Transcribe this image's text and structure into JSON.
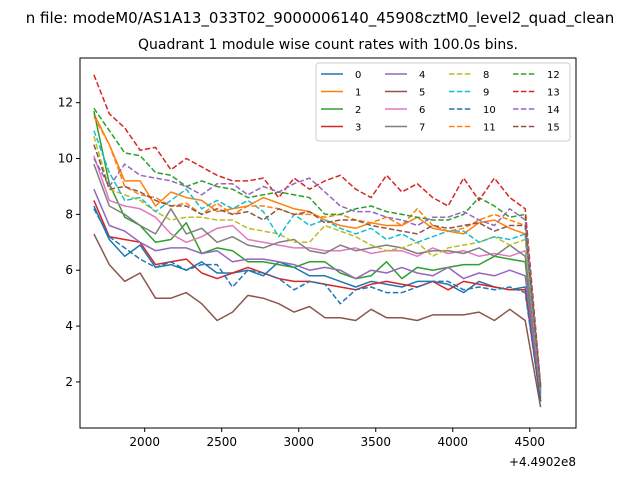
{
  "chart_data": {
    "type": "line",
    "suptitle": "n file: modeM0/AS1A13_033T02_9000006140_45908cztM0_level2_quad_clean",
    "title": "Quadrant 1 module wise count rates with 100.0s bins.",
    "xlabel": "",
    "ylabel": "",
    "offset_text": "+4.4902e8",
    "xlim": [
      1580,
      4800
    ],
    "ylim": [
      0.35,
      13.6
    ],
    "xticks": [
      2000,
      2500,
      3000,
      3500,
      4000,
      4500
    ],
    "yticks": [
      2,
      4,
      6,
      8,
      10,
      12
    ],
    "grid": false,
    "legend_position": "top-right",
    "legend_columns": 4,
    "x": [
      1670,
      1770,
      1870,
      1970,
      2070,
      2170,
      2270,
      2370,
      2470,
      2570,
      2670,
      2770,
      2870,
      2970,
      3070,
      3170,
      3270,
      3370,
      3470,
      3570,
      3670,
      3770,
      3870,
      3970,
      4070,
      4170,
      4270,
      4370,
      4470,
      4570
    ],
    "series": [
      {
        "name": "0",
        "color": "#1f77b4",
        "dash": "solid",
        "values": [
          8.3,
          7.1,
          6.5,
          6.9,
          6.1,
          6.2,
          6.0,
          6.3,
          5.9,
          5.9,
          6.0,
          5.8,
          6.3,
          6.1,
          5.8,
          5.8,
          5.6,
          5.4,
          5.6,
          5.5,
          5.4,
          5.6,
          5.6,
          5.5,
          5.2,
          5.6,
          5.4,
          5.3,
          5.4,
          1.3
        ]
      },
      {
        "name": "1",
        "color": "#ff7f0e",
        "dash": "solid",
        "values": [
          11.6,
          10.5,
          9.2,
          9.2,
          8.3,
          8.8,
          8.6,
          8.5,
          8.1,
          8.2,
          8.3,
          8.6,
          8.4,
          8.2,
          8.1,
          7.8,
          7.6,
          7.5,
          7.7,
          7.6,
          7.6,
          7.9,
          7.5,
          7.4,
          7.3,
          7.7,
          7.8,
          7.5,
          7.3,
          1.7
        ]
      },
      {
        "name": "2",
        "color": "#2ca02c",
        "dash": "solid",
        "values": [
          11.7,
          9.1,
          7.9,
          7.6,
          7.0,
          7.1,
          7.7,
          6.6,
          6.8,
          6.7,
          6.3,
          6.3,
          6.2,
          6.1,
          6.3,
          6.3,
          5.9,
          5.7,
          5.8,
          6.3,
          5.7,
          6.1,
          6.0,
          6.1,
          6.2,
          6.2,
          6.5,
          6.4,
          6.3,
          1.4
        ]
      },
      {
        "name": "3",
        "color": "#d62728",
        "dash": "solid",
        "values": [
          8.5,
          7.2,
          7.1,
          7.0,
          6.2,
          6.3,
          6.4,
          5.9,
          5.7,
          5.9,
          6.1,
          5.9,
          5.7,
          5.6,
          5.6,
          5.5,
          5.4,
          5.3,
          5.5,
          5.6,
          5.5,
          5.4,
          5.6,
          5.3,
          5.6,
          5.5,
          5.4,
          5.3,
          5.3,
          1.3
        ]
      },
      {
        "name": "4",
        "color": "#9467bd",
        "dash": "solid",
        "values": [
          8.9,
          7.6,
          7.4,
          7.0,
          6.7,
          6.8,
          6.8,
          6.6,
          6.7,
          6.3,
          6.4,
          6.4,
          6.3,
          6.2,
          6.0,
          6.1,
          6.0,
          5.7,
          6.0,
          5.9,
          6.1,
          5.9,
          5.8,
          6.1,
          5.7,
          5.9,
          5.8,
          6.0,
          5.8,
          1.5
        ]
      },
      {
        "name": "5",
        "color": "#8c564b",
        "dash": "solid",
        "values": [
          7.3,
          6.2,
          5.6,
          5.9,
          5.0,
          5.0,
          5.2,
          4.8,
          4.2,
          4.5,
          5.1,
          5.0,
          4.8,
          4.5,
          4.7,
          4.3,
          4.3,
          4.2,
          4.6,
          4.3,
          4.3,
          4.2,
          4.4,
          4.4,
          4.4,
          4.5,
          4.2,
          4.6,
          4.2,
          1.1
        ]
      },
      {
        "name": "6",
        "color": "#e377c2",
        "dash": "solid",
        "values": [
          10.1,
          8.5,
          8.3,
          8.2,
          7.9,
          7.3,
          7.0,
          7.2,
          7.5,
          7.6,
          7.1,
          7.0,
          6.9,
          6.8,
          6.8,
          6.7,
          6.7,
          6.8,
          6.6,
          6.7,
          6.7,
          6.5,
          6.8,
          6.6,
          6.7,
          6.5,
          6.6,
          6.5,
          6.7,
          1.6
        ]
      },
      {
        "name": "7",
        "color": "#7f7f7f",
        "dash": "solid",
        "values": [
          9.8,
          8.3,
          8.0,
          7.6,
          7.3,
          8.2,
          7.3,
          7.5,
          7.0,
          7.2,
          6.9,
          6.8,
          7.0,
          7.1,
          6.7,
          6.6,
          6.9,
          6.7,
          6.8,
          6.9,
          6.8,
          6.6,
          6.7,
          6.7,
          6.6,
          6.8,
          6.5,
          6.9,
          6.5,
          1.6
        ]
      },
      {
        "name": "8",
        "color": "#bcbd22",
        "dash": "dash",
        "values": [
          10.8,
          8.9,
          8.7,
          8.5,
          8.1,
          7.8,
          7.9,
          7.9,
          7.8,
          7.8,
          7.5,
          7.4,
          7.3,
          7.0,
          7.0,
          7.6,
          7.4,
          7.2,
          6.9,
          6.7,
          6.8,
          7.0,
          6.5,
          6.8,
          6.9,
          7.0,
          7.2,
          6.9,
          7.1,
          1.7
        ]
      },
      {
        "name": "9",
        "color": "#17becf",
        "dash": "dash",
        "values": [
          11.0,
          9.5,
          8.5,
          8.6,
          8.1,
          8.5,
          8.9,
          8.2,
          8.5,
          8.2,
          8.5,
          8.1,
          7.2,
          8.0,
          7.6,
          7.8,
          7.5,
          7.3,
          7.5,
          7.1,
          7.3,
          7.0,
          7.2,
          7.4,
          7.4,
          7.0,
          7.2,
          7.1,
          7.3,
          1.7
        ]
      },
      {
        "name": "10",
        "color": "#1f77b4",
        "dash": "dash",
        "values": [
          8.2,
          7.2,
          6.8,
          6.4,
          6.1,
          6.3,
          6.0,
          6.2,
          6.2,
          5.4,
          6.0,
          5.9,
          5.7,
          5.3,
          5.6,
          5.5,
          4.8,
          5.3,
          5.4,
          5.2,
          5.2,
          5.4,
          5.6,
          5.6,
          5.3,
          5.4,
          5.3,
          5.4,
          5.2,
          1.3
        ]
      },
      {
        "name": "11",
        "color": "#ff7f0e",
        "dash": "dash",
        "values": [
          11.5,
          10.5,
          9.0,
          8.7,
          8.6,
          8.3,
          8.4,
          8.0,
          8.4,
          8.0,
          8.3,
          8.3,
          8.2,
          8.0,
          8.0,
          7.9,
          8.0,
          7.8,
          7.7,
          7.9,
          7.6,
          8.2,
          7.6,
          7.4,
          7.5,
          7.8,
          8.0,
          7.8,
          7.6,
          1.7
        ]
      },
      {
        "name": "12",
        "color": "#2ca02c",
        "dash": "dash",
        "values": [
          11.8,
          11.0,
          10.2,
          10.1,
          9.5,
          9.4,
          9.0,
          9.2,
          9.0,
          8.9,
          8.6,
          8.7,
          8.8,
          8.7,
          8.6,
          8.0,
          8.0,
          8.2,
          8.3,
          8.1,
          8.0,
          7.9,
          7.8,
          7.8,
          8.0,
          8.6,
          8.3,
          7.9,
          8.0,
          1.8
        ]
      },
      {
        "name": "13",
        "color": "#d62728",
        "dash": "dash",
        "values": [
          13.0,
          11.6,
          11.1,
          10.3,
          10.4,
          9.6,
          10.0,
          9.7,
          9.4,
          9.2,
          9.2,
          9.3,
          8.6,
          9.3,
          8.9,
          9.2,
          9.4,
          8.9,
          8.6,
          9.4,
          8.8,
          9.1,
          8.6,
          8.3,
          9.3,
          8.5,
          9.3,
          8.6,
          8.2,
          1.9
        ]
      },
      {
        "name": "14",
        "color": "#9467bd",
        "dash": "dash",
        "values": [
          10.0,
          9.0,
          9.8,
          9.4,
          9.3,
          9.2,
          9.0,
          8.7,
          9.1,
          9.1,
          8.7,
          9.0,
          8.8,
          9.1,
          9.3,
          8.8,
          8.3,
          8.1,
          8.1,
          7.9,
          7.8,
          7.6,
          7.9,
          7.9,
          8.1,
          7.8,
          7.6,
          8.2,
          7.8,
          1.8
        ]
      },
      {
        "name": "15",
        "color": "#8c564b",
        "dash": "dash",
        "values": [
          10.5,
          8.9,
          9.0,
          8.8,
          8.5,
          8.3,
          8.3,
          8.0,
          8.2,
          8.0,
          8.1,
          7.8,
          8.2,
          8.0,
          8.1,
          7.7,
          7.8,
          7.8,
          7.6,
          7.5,
          7.4,
          7.3,
          7.6,
          7.5,
          7.6,
          7.7,
          7.4,
          7.6,
          7.6,
          1.8
        ]
      }
    ]
  }
}
